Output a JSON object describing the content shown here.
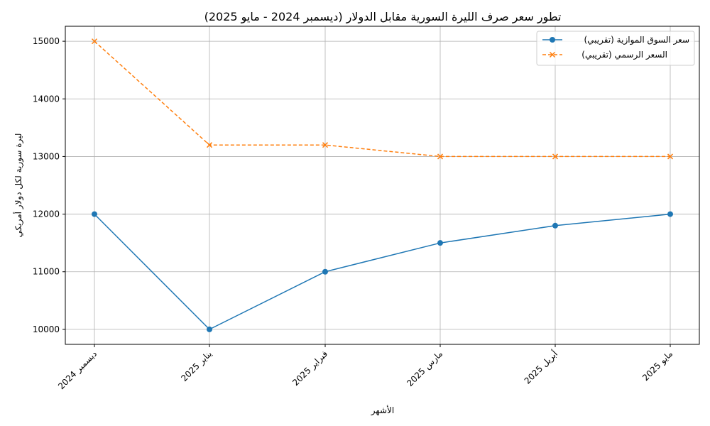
{
  "chart_data": {
    "type": "line",
    "title": "تطور سعر صرف الليرة السورية مقابل الدولار (ديسمبر 2024 - مايو 2025)",
    "xlabel": "الأشهر",
    "ylabel": "ليرة سورية لكل دولار أمريكي",
    "categories": [
      "ديسمبر 2024",
      "يناير 2025",
      "فبراير 2025",
      "مارس 2025",
      "أبريل 2025",
      "مايو 2025"
    ],
    "yticks": [
      10000,
      11000,
      12000,
      13000,
      14000,
      15000
    ],
    "ylim": [
      9740,
      15260
    ],
    "grid": true,
    "legend_position": "top-right",
    "series": [
      {
        "name": "سعر السوق الموازية (تقريبي)",
        "values": [
          12000,
          10000,
          11000,
          11500,
          11800,
          12000
        ],
        "color": "#1f77b4",
        "style": "solid",
        "marker": "circle"
      },
      {
        "name": "السعر الرسمي (تقريبي)",
        "values": [
          15000,
          13200,
          13200,
          13000,
          13000,
          13000
        ],
        "color": "#ff7f0e",
        "style": "dashed",
        "marker": "x"
      }
    ]
  }
}
